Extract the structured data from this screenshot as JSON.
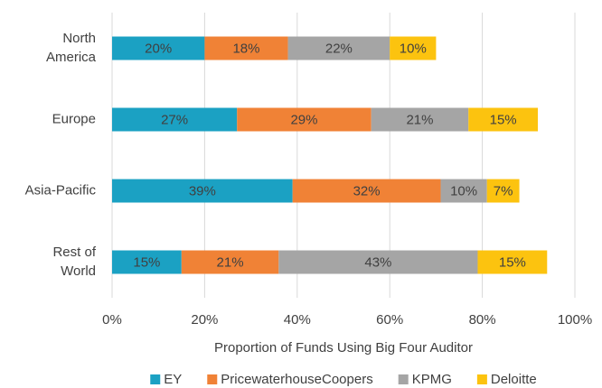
{
  "chart_data": {
    "type": "stacked-bar-horizontal",
    "categories": [
      "North America",
      "Europe",
      "Asia-Pacific",
      "Rest of World"
    ],
    "series": [
      {
        "name": "EY",
        "color": "#1ba1c3",
        "values": [
          20,
          27,
          39,
          15
        ],
        "value_labels": [
          "20%",
          "27%",
          "39%",
          "15%"
        ]
      },
      {
        "name": "PricewaterhouseCoopers",
        "color": "#f08236",
        "values": [
          18,
          29,
          32,
          21
        ],
        "value_labels": [
          "18%",
          "29%",
          "32%",
          "21%"
        ]
      },
      {
        "name": "KPMG",
        "color": "#a5a5a5",
        "values": [
          22,
          21,
          10,
          43
        ],
        "value_labels": [
          "22%",
          "21%",
          "10%",
          "43%"
        ]
      },
      {
        "name": "Deloitte",
        "color": "#fcc30f",
        "values": [
          10,
          15,
          7,
          15
        ],
        "value_labels": [
          "10%",
          "15%",
          "7%",
          "15%"
        ]
      }
    ],
    "xlabel": "Proportion of Funds Using Big Four Auditor",
    "xlim": [
      0,
      100
    ],
    "xticks": [
      {
        "value": 0,
        "label": "0%"
      },
      {
        "value": 20,
        "label": "20%"
      },
      {
        "value": 40,
        "label": "40%"
      },
      {
        "value": 60,
        "label": "60%"
      },
      {
        "value": 80,
        "label": "80%"
      },
      {
        "value": 100,
        "label": "100%"
      }
    ],
    "grid": true,
    "legend": "bottom"
  }
}
